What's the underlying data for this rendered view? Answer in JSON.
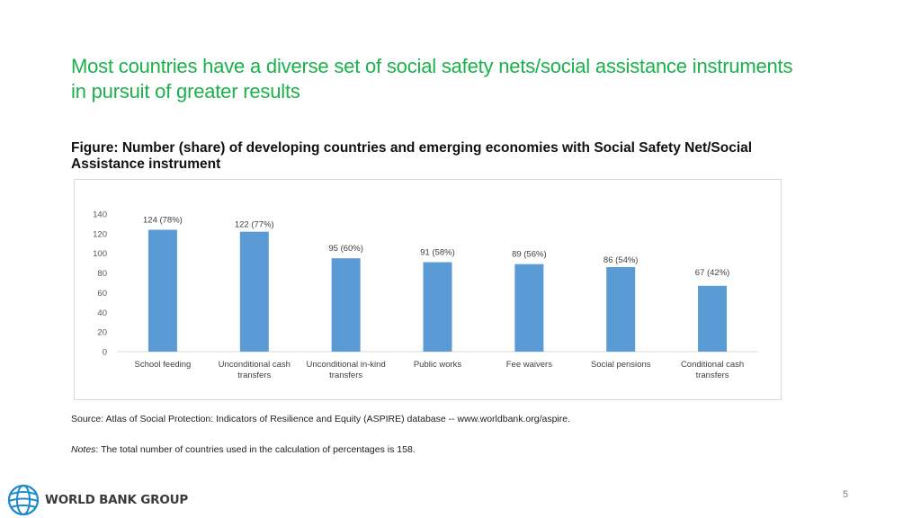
{
  "slide": {
    "title": "Most countries have a diverse set of social safety nets/social assistance instruments in pursuit of greater results",
    "subtitle": "Figure: Number (share) of developing countries and emerging economies with Social Safety Net/Social Assistance instrument",
    "source": "Source: Atlas of Social Protection: Indicators of Resilience and Equity (ASPIRE) database -- www.worldbank.org/aspire.",
    "notes_label": "Notes",
    "notes_text": ": The total number of countries used in the calculation of percentages is 158.",
    "logo_text": "WORLD BANK GROUP",
    "page_number": "5"
  },
  "colors": {
    "title": "#1bb14b",
    "bar": "#5b9bd5",
    "logo_blue": "#1a8bcf"
  },
  "chart_data": {
    "type": "bar",
    "categories": [
      [
        "School feeding"
      ],
      [
        "Unconditional cash",
        "transfers"
      ],
      [
        "Unconditional in-kind",
        "transfers"
      ],
      [
        "Public works"
      ],
      [
        "Fee waivers"
      ],
      [
        "Social pensions"
      ],
      [
        "Conditional cash",
        "transfers"
      ]
    ],
    "values": [
      124,
      122,
      95,
      91,
      89,
      86,
      67
    ],
    "data_labels": [
      "124 (78%)",
      "122 (77%)",
      "95 (60%)",
      "91 (58%)",
      "89 (56%)",
      "86 (54%)",
      "67 (42%)"
    ],
    "ylim": [
      0,
      140
    ],
    "yticks": [
      0,
      20,
      40,
      60,
      80,
      100,
      120,
      140
    ],
    "grid": false,
    "legend": "none"
  }
}
